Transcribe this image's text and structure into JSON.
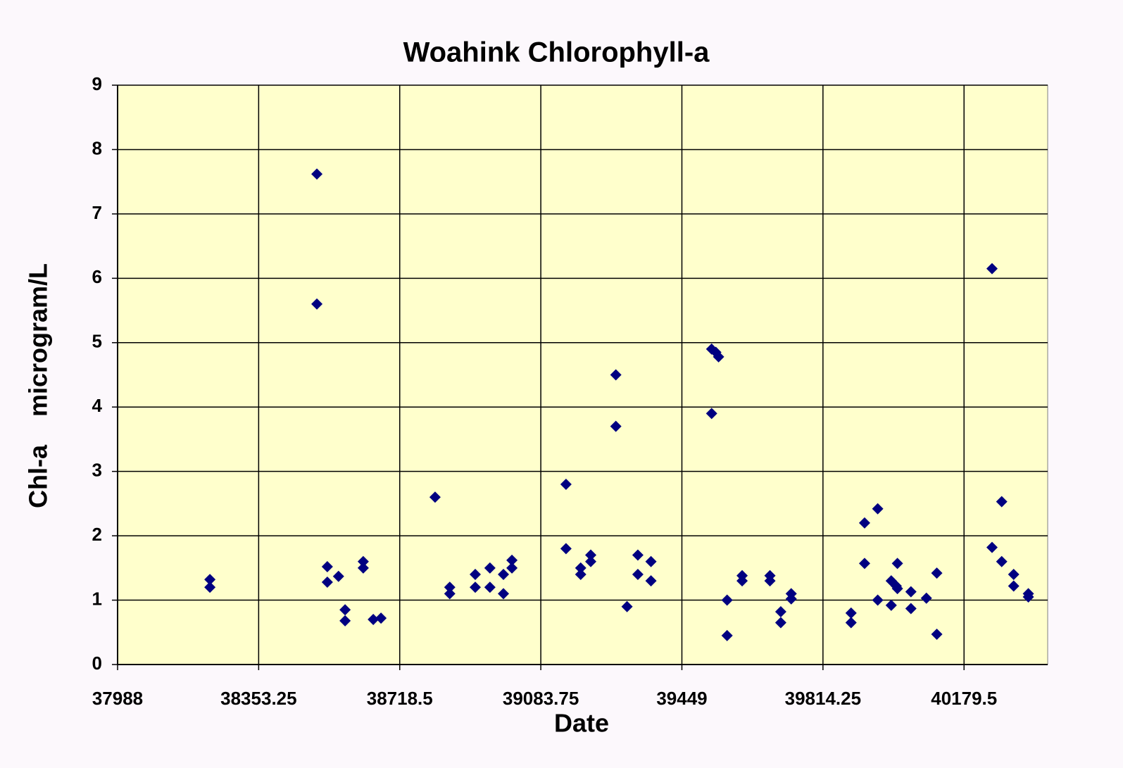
{
  "chart_data": {
    "type": "scatter",
    "title": "Woahink Chlorophyll-a",
    "x_label": "Date",
    "y_label": "Chl-a    microgram/L",
    "color": "#000080",
    "plot_background": "#ffffcc",
    "grid": true,
    "xlim": [
      37988,
      40396
    ],
    "ylim": [
      0,
      9
    ],
    "xticks": [
      37988,
      38353.25,
      38718.5,
      39083.75,
      39449,
      39814.25,
      40179.5
    ],
    "yticks": [
      0,
      1,
      2,
      3,
      4,
      5,
      6,
      7,
      8,
      9
    ],
    "x": [
      38227,
      38227,
      38504,
      38504,
      38531,
      38531,
      38560,
      38577,
      38577,
      38624,
      38624,
      38650,
      38670,
      38810,
      38848,
      38848,
      38914,
      38914,
      38952,
      38952,
      38987,
      38987,
      39009,
      39009,
      39149,
      39149,
      39187,
      39187,
      39213,
      39213,
      39278,
      39278,
      39307,
      39335,
      39335,
      39369,
      39369,
      39526,
      39526,
      39537,
      39544,
      39566,
      39566,
      39605,
      39605,
      39677,
      39677,
      39705,
      39705,
      39732,
      39732,
      39887,
      39887,
      39922,
      39922,
      39956,
      39956,
      39991,
      39991,
      40004,
      40007,
      40007,
      40042,
      40042,
      40082,
      40109,
      40109,
      40252,
      40252,
      40277,
      40277,
      40308,
      40308,
      40346,
      40346
    ],
    "values": [
      1.32,
      1.2,
      7.62,
      5.6,
      1.52,
      1.28,
      1.37,
      0.85,
      0.68,
      1.6,
      1.5,
      0.7,
      0.72,
      2.6,
      1.2,
      1.1,
      1.4,
      1.2,
      1.5,
      1.2,
      1.4,
      1.1,
      1.62,
      1.5,
      2.8,
      1.8,
      1.5,
      1.4,
      1.7,
      1.6,
      4.5,
      3.7,
      0.9,
      1.7,
      1.4,
      1.6,
      1.3,
      4.9,
      3.9,
      4.85,
      4.78,
      1.0,
      0.45,
      1.38,
      1.3,
      1.38,
      1.3,
      0.82,
      0.65,
      1.1,
      1.02,
      0.8,
      0.65,
      2.2,
      1.57,
      2.42,
      1.0,
      1.3,
      0.92,
      1.22,
      1.57,
      1.18,
      1.13,
      0.87,
      1.03,
      1.42,
      0.47,
      6.15,
      1.82,
      2.53,
      1.6,
      1.4,
      1.22,
      1.1,
      1.05
    ]
  }
}
